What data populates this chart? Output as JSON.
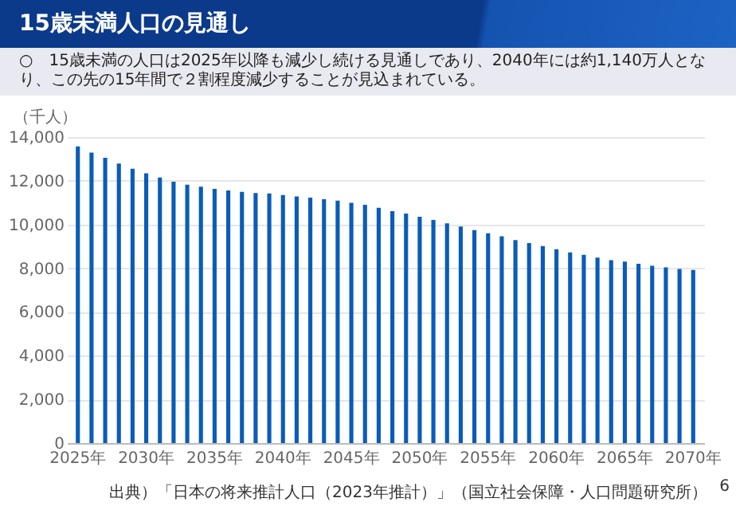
{
  "chart_data": {
    "type": "bar",
    "title": "15歳未満人口の見通し",
    "subtitle": "○　15歳未満の人口は2025年以降も減少し続ける見通しであり、2040年には約1,140万人となり、この先の15年間で２割程度減少することが見込まれている。",
    "ylabel": "（千人）",
    "annotations": [
      "出典）「日本の将来推計人口（2023年推計）」（国立社会保障・人口問題研究所）",
      "6"
    ],
    "categories": [
      "2025年",
      null,
      null,
      null,
      null,
      "2030年",
      null,
      null,
      null,
      null,
      "2035年",
      null,
      null,
      null,
      null,
      "2040年",
      null,
      null,
      null,
      null,
      "2045年",
      null,
      null,
      null,
      null,
      "2050年",
      null,
      null,
      null,
      null,
      "2055年",
      null,
      null,
      null,
      null,
      "2060年",
      null,
      null,
      null,
      null,
      "2065年",
      null,
      null,
      null,
      null,
      "2070年"
    ],
    "values": [
      13570,
      13290,
      13050,
      12790,
      12550,
      12340,
      12150,
      11960,
      11820,
      11730,
      11630,
      11560,
      11490,
      11440,
      11420,
      11350,
      11280,
      11230,
      11160,
      11090,
      10990,
      10900,
      10760,
      10610,
      10500,
      10350,
      10210,
      10050,
      9910,
      9740,
      9600,
      9460,
      9290,
      9150,
      9010,
      8870,
      8720,
      8610,
      8490,
      8370,
      8300,
      8200,
      8110,
      8040,
      7970,
      7920
    ],
    "color": "#0a5cb8",
    "ylim": [
      0,
      14000
    ],
    "yticks": [
      0,
      {
        "value": 2000,
        "label": "2,000"
      },
      {
        "value": 4000,
        "label": "4,000"
      },
      {
        "value": 6000,
        "label": "6,000"
      },
      {
        "value": 8000,
        "label": "8,000"
      },
      {
        "value": 10000,
        "label": "10,000"
      },
      {
        "value": 12000,
        "label": "12,000"
      },
      {
        "value": 14000,
        "label": "14,000"
      }
    ],
    "grid": "y"
  }
}
